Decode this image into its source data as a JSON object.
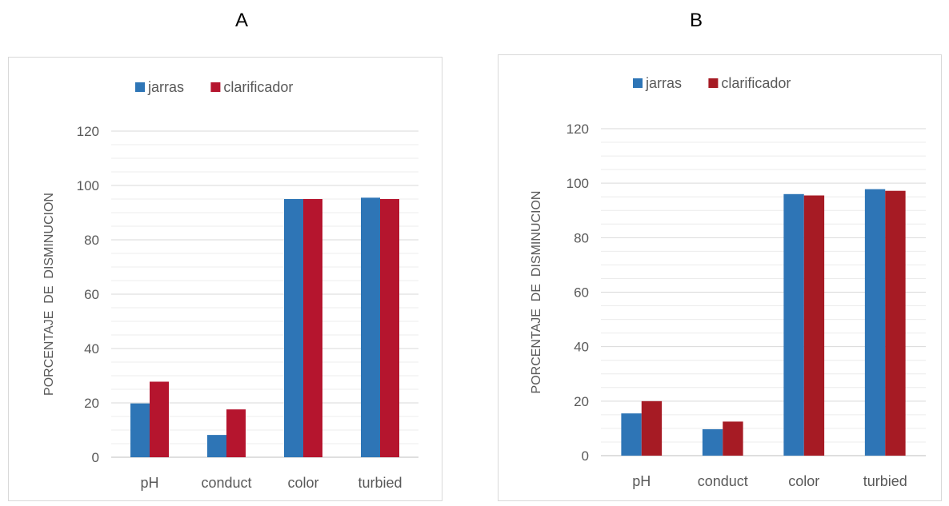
{
  "panels": [
    {
      "label": "A"
    },
    {
      "label": "B"
    }
  ],
  "chart_data": [
    {
      "type": "bar",
      "title": "",
      "xlabel": "",
      "ylabel": "PORCENTAJE  DE  DISMINUCION",
      "categories": [
        "pH",
        "conduct",
        "color",
        "turbied"
      ],
      "series": [
        {
          "name": "jarras",
          "color": "#2e75b6",
          "values": [
            19.8,
            8.2,
            95,
            95.5
          ]
        },
        {
          "name": "clarificador",
          "color": "#b5152e",
          "values": [
            27.8,
            17.6,
            95,
            95
          ]
        }
      ],
      "ylim": [
        0,
        120
      ],
      "yticks": [
        0,
        20,
        40,
        60,
        80,
        100,
        120
      ],
      "grid": true,
      "legend_position": "top"
    },
    {
      "type": "bar",
      "title": "",
      "xlabel": "",
      "ylabel": "PORCENTAJE  DE  DISMINUCION",
      "categories": [
        "pH",
        "conduct",
        "color",
        "turbied"
      ],
      "series": [
        {
          "name": "jarras",
          "color": "#2e75b6",
          "values": [
            15.5,
            9.7,
            96,
            97.8
          ]
        },
        {
          "name": "clarificador",
          "color": "#a61b24",
          "values": [
            20,
            12.5,
            95.5,
            97.2
          ]
        }
      ],
      "ylim": [
        0,
        120
      ],
      "yticks": [
        0,
        20,
        40,
        60,
        80,
        100,
        120
      ],
      "grid": true,
      "legend_position": "top"
    }
  ]
}
